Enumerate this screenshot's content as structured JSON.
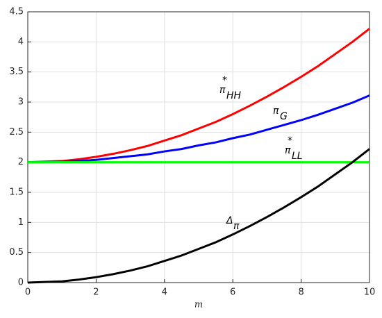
{
  "chart_data": {
    "type": "line",
    "x": [
      0,
      0.5,
      1,
      1.5,
      2,
      2.5,
      3,
      3.5,
      4,
      4.5,
      5,
      5.5,
      6,
      6.5,
      7,
      7.5,
      8,
      8.5,
      9,
      9.5,
      10
    ],
    "series": [
      {
        "color": "#ff0000",
        "values": [
          2.0,
          2.01,
          2.02,
          2.05,
          2.09,
          2.14,
          2.2,
          2.27,
          2.36,
          2.45,
          2.56,
          2.67,
          2.8,
          2.94,
          3.09,
          3.25,
          3.42,
          3.6,
          3.8,
          4.0,
          4.22
        ]
      },
      {
        "color": "#0000ff",
        "values": [
          2.0,
          2.0,
          2.01,
          2.02,
          2.04,
          2.07,
          2.1,
          2.13,
          2.18,
          2.22,
          2.28,
          2.33,
          2.4,
          2.46,
          2.54,
          2.62,
          2.7,
          2.79,
          2.89,
          2.99,
          3.11
        ]
      },
      {
        "color": "#00ff00",
        "values": [
          2,
          2,
          2,
          2,
          2,
          2,
          2,
          2,
          2,
          2,
          2,
          2,
          2,
          2,
          2,
          2,
          2,
          2,
          2,
          2,
          2
        ]
      },
      {
        "color": "#000000",
        "values": [
          0.0,
          0.01,
          0.02,
          0.05,
          0.09,
          0.14,
          0.2,
          0.27,
          0.36,
          0.45,
          0.56,
          0.67,
          0.8,
          0.94,
          1.09,
          1.25,
          1.42,
          1.6,
          1.8,
          2.0,
          2.22
        ]
      }
    ],
    "annotations": [
      {
        "text": "π",
        "sub": "HH",
        "sup": "*"
      },
      {
        "text": "π",
        "sub": "G"
      },
      {
        "text": "π",
        "sub": "LL",
        "sup": "*"
      },
      {
        "text": "Δ",
        "sub": "π"
      }
    ],
    "x_label": "m",
    "xlim": [
      0,
      10
    ],
    "xticks": [
      0,
      2,
      4,
      6,
      8,
      10
    ],
    "ylim": [
      0,
      4.5
    ],
    "yticks": [
      0,
      0.5,
      1,
      1.5,
      2,
      2.5,
      3,
      3.5,
      4,
      4.5
    ],
    "grid": true
  }
}
